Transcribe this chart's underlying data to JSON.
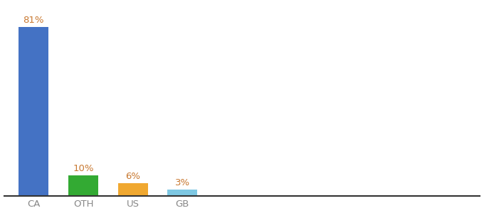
{
  "categories": [
    "CA",
    "OTH",
    "US",
    "GB"
  ],
  "values": [
    81,
    10,
    6,
    3
  ],
  "labels": [
    "81%",
    "10%",
    "6%",
    "3%"
  ],
  "bar_colors": [
    "#4472c4",
    "#33aa33",
    "#f0a830",
    "#7ec8e3"
  ],
  "background_color": "#ffffff",
  "ylim": [
    0,
    92
  ],
  "label_fontsize": 9.5,
  "tick_fontsize": 9.5,
  "label_color": "#c87830",
  "bar_width": 0.6,
  "x_positions": [
    0,
    1,
    2,
    3
  ],
  "figsize": [
    6.8,
    3.0
  ],
  "dpi": 100
}
